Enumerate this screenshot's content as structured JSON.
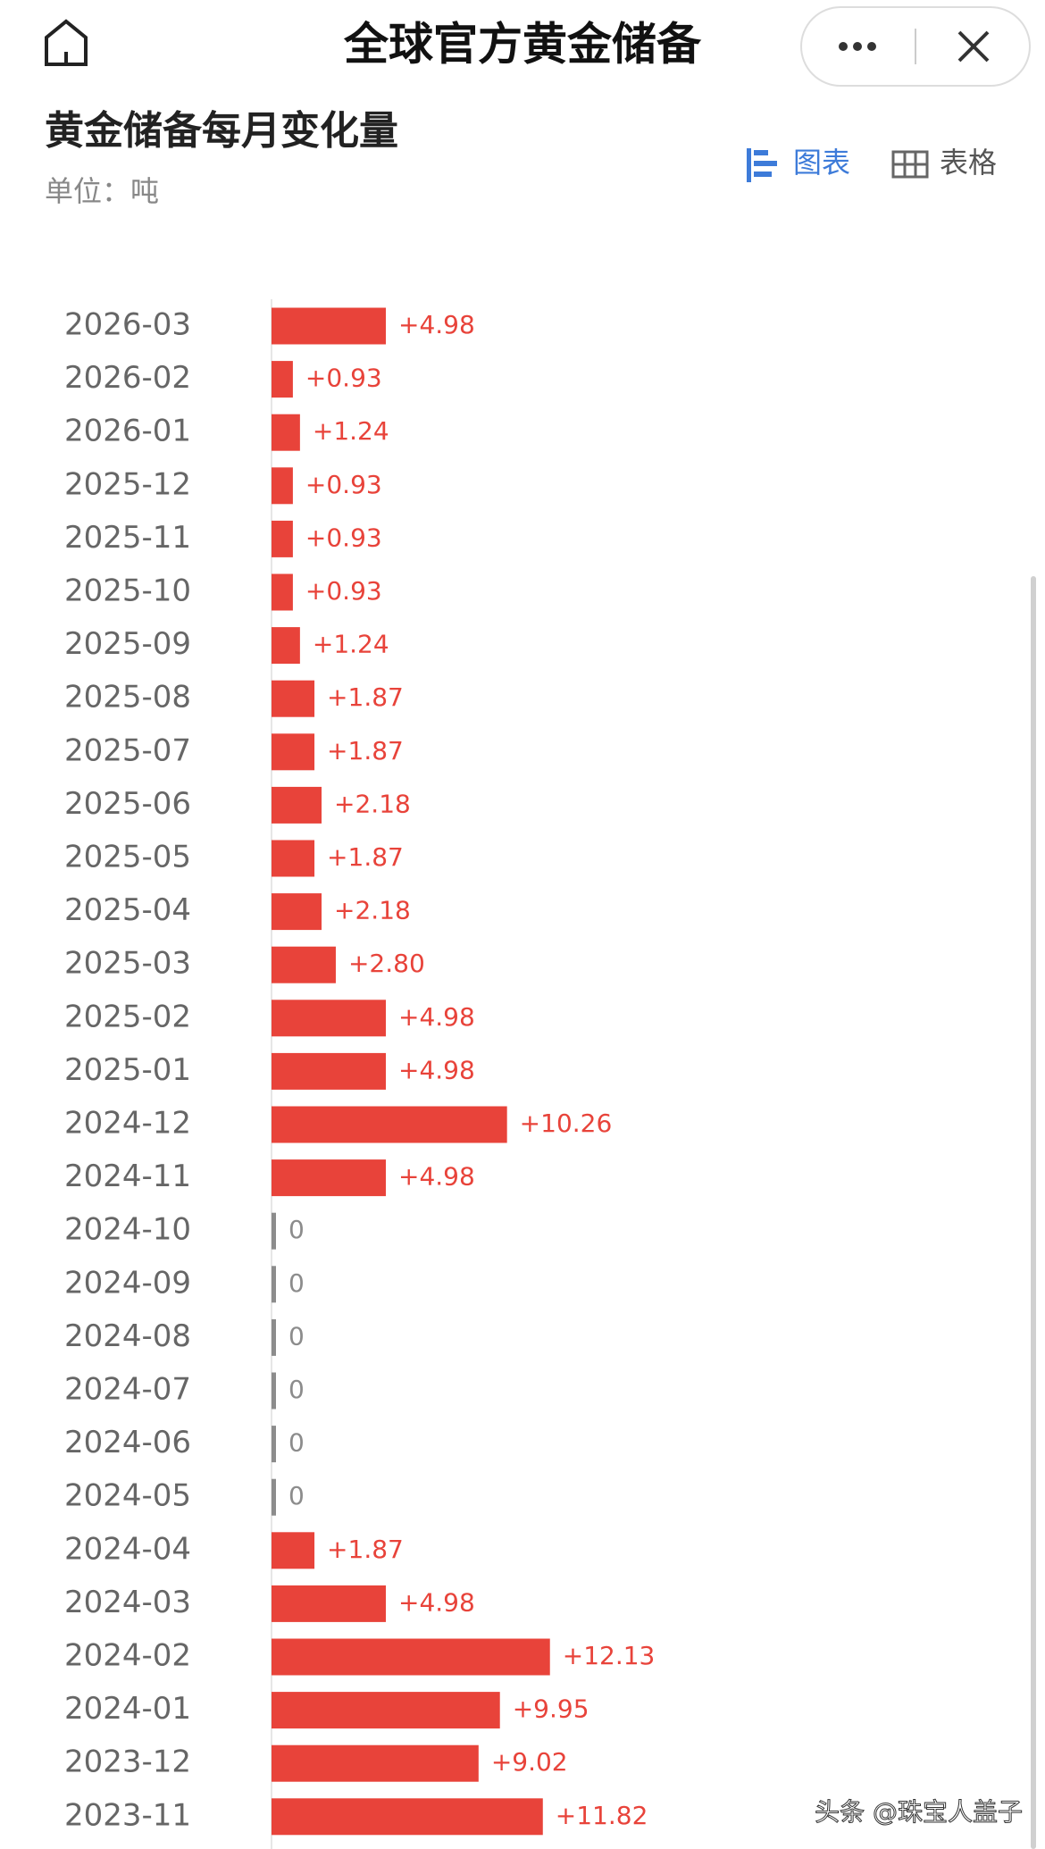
{
  "header": {
    "title": "全球官方黄金储备"
  },
  "tabs": [
    "图表",
    "表格"
  ],
  "watermark": "头条 @珠宝人盖子",
  "chart_data": {
    "type": "bar",
    "orientation": "horizontal",
    "title": "黄金储备每月变化量",
    "subtitle": "单位：吨",
    "color": "#e8433a",
    "zero_color": "#8c8c8c",
    "categories": [
      "2026-03",
      "2026-02",
      "2026-01",
      "2025-12",
      "2025-11",
      "2025-10",
      "2025-09",
      "2025-08",
      "2025-07",
      "2025-06",
      "2025-05",
      "2025-04",
      "2025-03",
      "2025-02",
      "2025-01",
      "2024-12",
      "2024-11",
      "2024-10",
      "2024-09",
      "2024-08",
      "2024-07",
      "2024-06",
      "2024-05",
      "2024-04",
      "2024-03",
      "2024-02",
      "2024-01",
      "2023-12",
      "2023-11"
    ],
    "values": [
      4.98,
      0.93,
      1.24,
      0.93,
      0.93,
      0.93,
      1.24,
      1.87,
      1.87,
      2.18,
      1.87,
      2.18,
      2.8,
      4.98,
      4.98,
      10.26,
      4.98,
      0,
      0,
      0,
      0,
      0,
      0,
      1.87,
      4.98,
      12.13,
      9.95,
      9.02,
      11.82
    ],
    "value_labels": [
      "+4.98",
      "+0.93",
      "+1.24",
      "+0.93",
      "+0.93",
      "+0.93",
      "+1.24",
      "+1.87",
      "+1.87",
      "+2.18",
      "+1.87",
      "+2.18",
      "+2.80",
      "+4.98",
      "+4.98",
      "+10.26",
      "+4.98",
      "0",
      "0",
      "0",
      "0",
      "0",
      "0",
      "+1.87",
      "+4.98",
      "+12.13",
      "+9.95",
      "+9.02",
      "+11.82"
    ]
  }
}
